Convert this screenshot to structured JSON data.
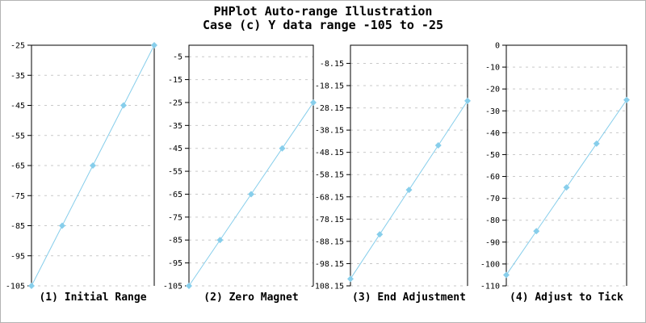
{
  "window": {
    "background": "#ffffff",
    "border_color": "#b3b3b3"
  },
  "header": {
    "title_line1": "PHPlot Auto-range Illustration",
    "title_line2": "Case (c) Y data range -105 to -25"
  },
  "colors": {
    "data_line": "#87CEEB",
    "marker": "#87CEEB",
    "grid": "#c9c9c9",
    "axis": "#000000",
    "text": "#000000"
  },
  "chart_data": [
    {
      "type": "line",
      "title": "(1) Initial Range",
      "x": [
        0,
        1,
        2,
        3,
        4
      ],
      "values": [
        -105,
        -85,
        -65,
        -45,
        -25
      ],
      "ylim": [
        -105,
        -25
      ],
      "yticks": [
        -25,
        -35,
        -45,
        -55,
        -65,
        -75,
        -85,
        -95,
        -105
      ],
      "ytick_labels": [
        "-25",
        "-35",
        "-45",
        "-55",
        "-65",
        "-75",
        "-85",
        "-95",
        "-105"
      ],
      "grid": "horizontal-dashed",
      "legend": "none",
      "marker": "diamond"
    },
    {
      "type": "line",
      "title": "(2) Zero Magnet",
      "x": [
        0,
        1,
        2,
        3,
        4
      ],
      "values": [
        -105,
        -85,
        -65,
        -45,
        -25
      ],
      "ylim": [
        -105,
        0
      ],
      "yticks": [
        -5,
        -15,
        -25,
        -35,
        -45,
        -55,
        -65,
        -75,
        -85,
        -95,
        -105
      ],
      "ytick_labels": [
        "-5",
        "-15",
        "-25",
        "-35",
        "-45",
        "-55",
        "-65",
        "-75",
        "-85",
        "-95",
        "-105"
      ],
      "grid": "horizontal-dashed",
      "legend": "none",
      "marker": "diamond"
    },
    {
      "type": "line",
      "title": "(3) End Adjustment",
      "x": [
        0,
        1,
        2,
        3,
        4
      ],
      "values": [
        -105,
        -85,
        -65,
        -45,
        -25
      ],
      "ylim": [
        -108.15,
        0
      ],
      "yticks": [
        -8.15,
        -18.15,
        -28.15,
        -38.15,
        -48.15,
        -58.15,
        -68.15,
        -78.15,
        -88.15,
        -98.15,
        -108.15
      ],
      "ytick_labels": [
        "-8.15",
        "-18.15",
        "-28.15",
        "-38.15",
        "-48.15",
        "-58.15",
        "-68.15",
        "-78.15",
        "-88.15",
        "-98.15",
        "-108.15"
      ],
      "grid": "horizontal-dashed",
      "legend": "none",
      "marker": "diamond"
    },
    {
      "type": "line",
      "title": "(4) Adjust to Tick",
      "x": [
        0,
        1,
        2,
        3,
        4
      ],
      "values": [
        -105,
        -85,
        -65,
        -45,
        -25
      ],
      "ylim": [
        -110,
        0
      ],
      "yticks": [
        0,
        -10,
        -20,
        -30,
        -40,
        -50,
        -60,
        -70,
        -80,
        -90,
        -100,
        -110
      ],
      "ytick_labels": [
        "0",
        "-10",
        "-20",
        "-30",
        "-40",
        "-50",
        "-60",
        "-70",
        "-80",
        "-90",
        "-100",
        "-110"
      ],
      "grid": "horizontal-dashed",
      "legend": "none",
      "marker": "diamond"
    }
  ]
}
